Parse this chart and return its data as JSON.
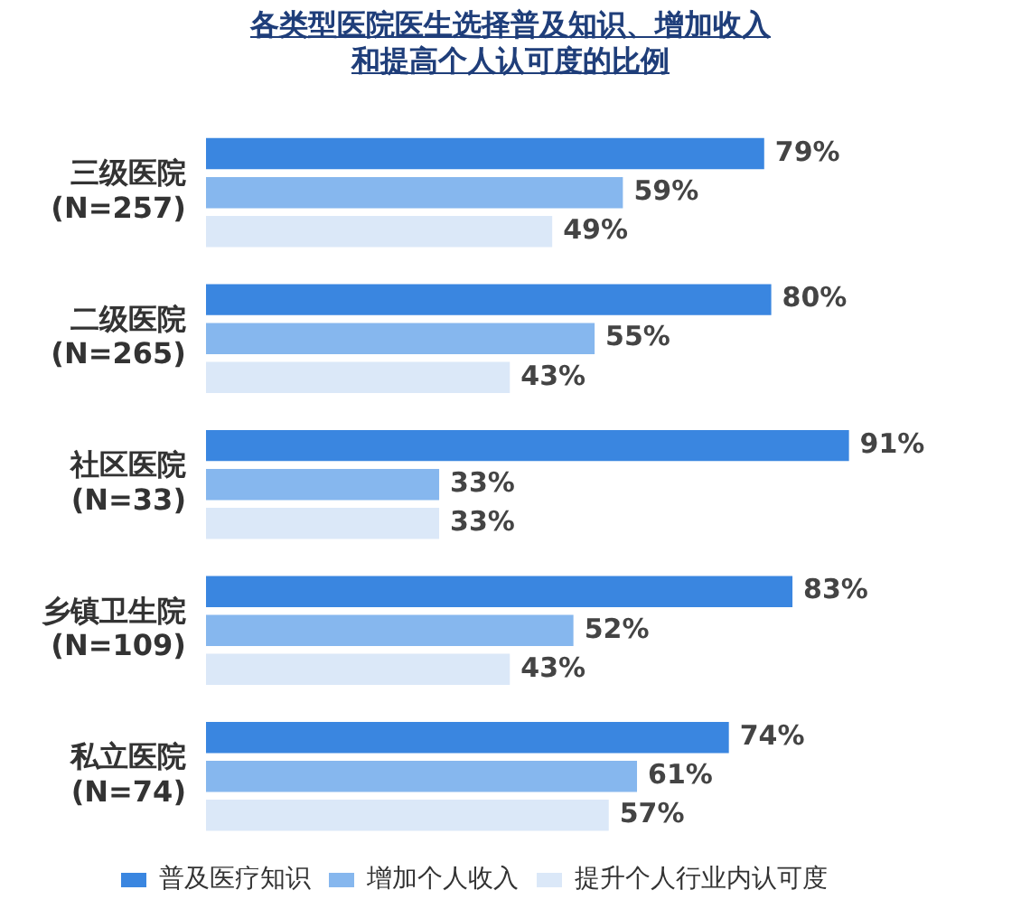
{
  "chart_data": {
    "type": "bar",
    "orientation": "horizontal",
    "title": "各类型医院医生选择普及知识、增加收入和提高个人认可度的比例",
    "categories": [
      "三级医院\n(N=257)",
      "二级医院\n(N=265)",
      "社区医院\n(N=33)",
      "乡镇卫生院\n(N=109)",
      "私立医院\n(N=74)"
    ],
    "series": [
      {
        "name": "普及医疗知识",
        "color": "#3a86e0",
        "values": [
          79,
          80,
          91,
          83,
          74
        ],
        "value_labels": [
          "79%",
          "80%",
          "91%",
          "83%",
          "74%"
        ]
      },
      {
        "name": "增加个人收入",
        "color": "#86b7ee",
        "values": [
          59,
          55,
          33,
          52,
          61
        ],
        "value_labels": [
          "59%",
          "55%",
          "33%",
          "52%",
          "61%"
        ]
      },
      {
        "name": "提升个人行业内认可度",
        "color": "#dbe8f8",
        "values": [
          49,
          43,
          33,
          43,
          57
        ],
        "value_labels": [
          "49%",
          "43%",
          "33%",
          "43%",
          "57%"
        ]
      }
    ],
    "legend": "bottom"
  }
}
